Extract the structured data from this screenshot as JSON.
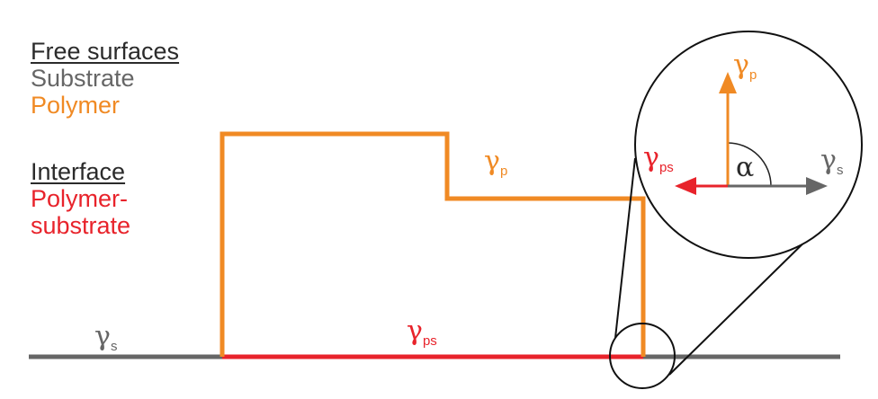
{
  "legend": {
    "free_surfaces": "Free surfaces",
    "substrate": "Substrate",
    "polymer": "Polymer",
    "interface": "Interface",
    "polymer_substrate_1": "Polymer-",
    "polymer_substrate_2": "substrate"
  },
  "symbols": {
    "gamma": "γ",
    "alpha": "α",
    "sub_s": "s",
    "sub_p": "p",
    "sub_ps": "ps"
  },
  "colors": {
    "substrate": "#666666",
    "polymer": "#f08a24",
    "interface": "#e8232b",
    "text_dark": "#2b2b2b"
  }
}
